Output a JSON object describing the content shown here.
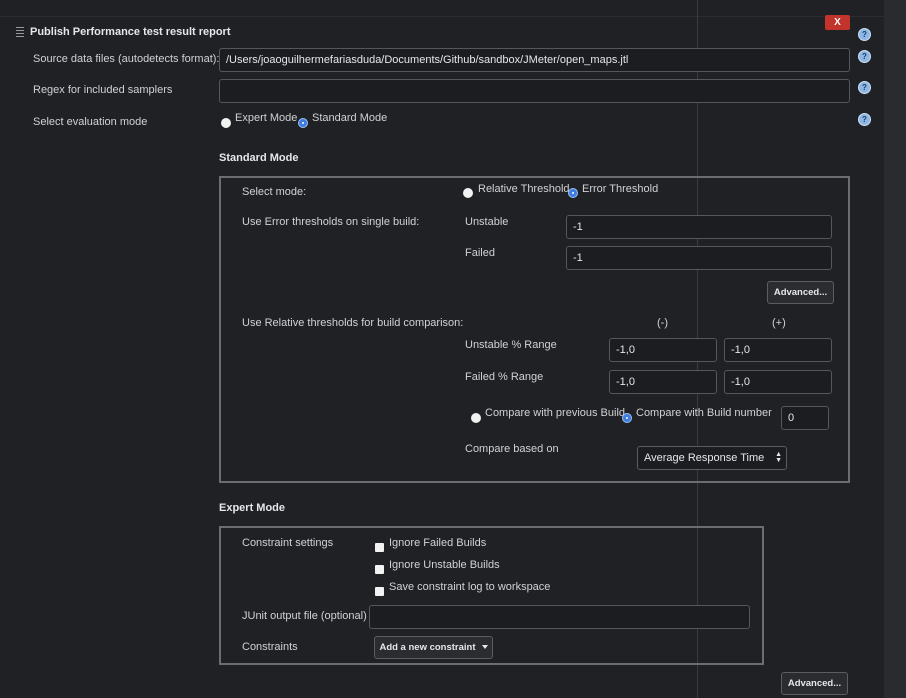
{
  "header": {
    "title": "Publish Performance test result report",
    "close_label": "X",
    "help_label": "?"
  },
  "form": {
    "source_label": "Source data files (autodetects format):",
    "source_value": "/Users/joaoguilhermefariasduda/Documents/Github/sandbox/JMeter/open_maps.jtl",
    "regex_label": "Regex for included samplers",
    "regex_value": "",
    "eval_label": "Select evaluation mode",
    "eval_options": [
      {
        "label": "Expert Mode",
        "selected": false
      },
      {
        "label": "Standard Mode",
        "selected": true
      }
    ]
  },
  "standard": {
    "heading": "Standard Mode",
    "select_mode_label": "Select mode:",
    "mode_options": [
      {
        "label": "Relative Threshold",
        "selected": false
      },
      {
        "label": "Error Threshold",
        "selected": true
      }
    ],
    "error_thresholds_label": "Use Error thresholds on single build:",
    "unstable_label": "Unstable",
    "unstable_value": "-1",
    "failed_label": "Failed",
    "failed_value": "-1",
    "advanced_label": "Advanced...",
    "relative_label": "Use Relative thresholds for build comparison:",
    "minus_header": "(-)",
    "plus_header": "(+)",
    "unstable_range_label": "Unstable % Range",
    "unstable_range_minus": "-1,0",
    "unstable_range_plus": "-1,0",
    "failed_range_label": "Failed % Range",
    "failed_range_minus": "-1,0",
    "failed_range_plus": "-1,0",
    "compare_options": [
      {
        "label": "Compare with previous Build",
        "selected": false
      },
      {
        "label": "Compare with Build number",
        "selected": true
      }
    ],
    "build_number": "0",
    "compare_based_label": "Compare based on",
    "compare_based_value": "Average Response Time"
  },
  "expert": {
    "heading": "Expert Mode",
    "constraint_settings_label": "Constraint settings",
    "checkboxes": [
      {
        "label": "Ignore Failed Builds",
        "checked": false
      },
      {
        "label": "Ignore Unstable Builds",
        "checked": false
      },
      {
        "label": "Save constraint log to workspace",
        "checked": false
      }
    ],
    "junit_label": "JUnit output file (optional)",
    "junit_value": "",
    "constraints_label": "Constraints",
    "add_constraint_label": "Add a new constraint"
  },
  "footer": {
    "advanced_label": "Advanced..."
  },
  "colors": {
    "background": "#202124",
    "accent_radio": "#3d7de0",
    "close_button": "#c1332b",
    "help_icon": "#8fb7e6"
  }
}
